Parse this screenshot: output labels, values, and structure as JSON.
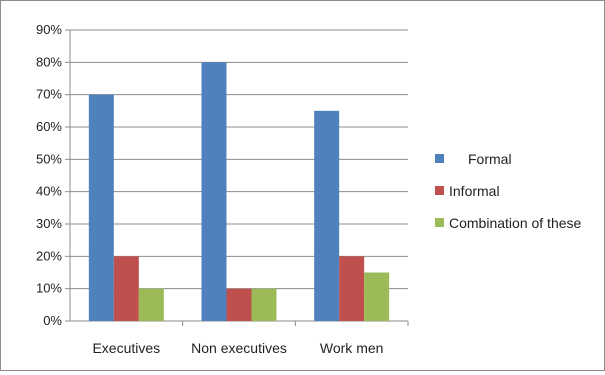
{
  "chart_data": {
    "type": "bar",
    "categories": [
      "Executives",
      "Non executives",
      "Work men"
    ],
    "series": [
      {
        "name": "Formal",
        "values": [
          70,
          80,
          65
        ],
        "color": "#4f81bd"
      },
      {
        "name": "Informal",
        "values": [
          20,
          10,
          20
        ],
        "color": "#c0504d"
      },
      {
        "name": "Combination of these",
        "values": [
          10,
          10,
          15
        ],
        "color": "#9bbb59"
      }
    ],
    "ylim": [
      0,
      90
    ],
    "yticks": [
      "0%",
      "10%",
      "20%",
      "30%",
      "40%",
      "50%",
      "60%",
      "70%",
      "80%",
      "90%"
    ],
    "grid": true,
    "legend_position": "right",
    "title": "",
    "xlabel": "",
    "ylabel": ""
  }
}
